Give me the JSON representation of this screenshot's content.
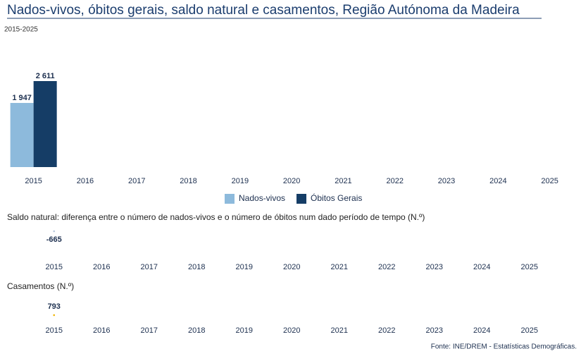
{
  "title": "Nados-vivos, óbitos gerais, saldo natural e casamentos, Região Autónoma da Madeira",
  "subtitle": "2015-2025",
  "source": "Fonte: INE/DREM - Estatísticas Demográficas.",
  "chart_data": [
    {
      "type": "bar",
      "categories": [
        "2015",
        "2016",
        "2017",
        "2018",
        "2019",
        "2020",
        "2021",
        "2022",
        "2023",
        "2024",
        "2025"
      ],
      "series": [
        {
          "name": "Nados-vivos",
          "color": "#8dbadc",
          "values": [
            1947,
            null,
            null,
            null,
            null,
            null,
            null,
            null,
            null,
            null,
            null
          ],
          "value_labels": [
            "1 947",
            null,
            null,
            null,
            null,
            null,
            null,
            null,
            null,
            null,
            null
          ]
        },
        {
          "name": "Óbitos Gerais",
          "color": "#153d66",
          "values": [
            2611,
            null,
            null,
            null,
            null,
            null,
            null,
            null,
            null,
            null,
            null
          ],
          "value_labels": [
            "2 611",
            null,
            null,
            null,
            null,
            null,
            null,
            null,
            null,
            null,
            null
          ]
        }
      ],
      "legend": "bottom"
    },
    {
      "type": "line",
      "title": "Saldo natural: diferença entre o número de nados-vivos e o número de óbitos num dado período de tempo (N.º)",
      "categories": [
        "2015",
        "2016",
        "2017",
        "2018",
        "2019",
        "2020",
        "2021",
        "2022",
        "2023",
        "2024",
        "2025"
      ],
      "values": [
        -665,
        null,
        null,
        null,
        null,
        null,
        null,
        null,
        null,
        null,
        null
      ],
      "color": "#b8c8dc"
    },
    {
      "type": "line",
      "title": "Casamentos (N.º)",
      "categories": [
        "2015",
        "2016",
        "2017",
        "2018",
        "2019",
        "2020",
        "2021",
        "2022",
        "2023",
        "2024",
        "2025"
      ],
      "values": [
        793,
        null,
        null,
        null,
        null,
        null,
        null,
        null,
        null,
        null,
        null
      ],
      "color": "#f0b400"
    }
  ]
}
